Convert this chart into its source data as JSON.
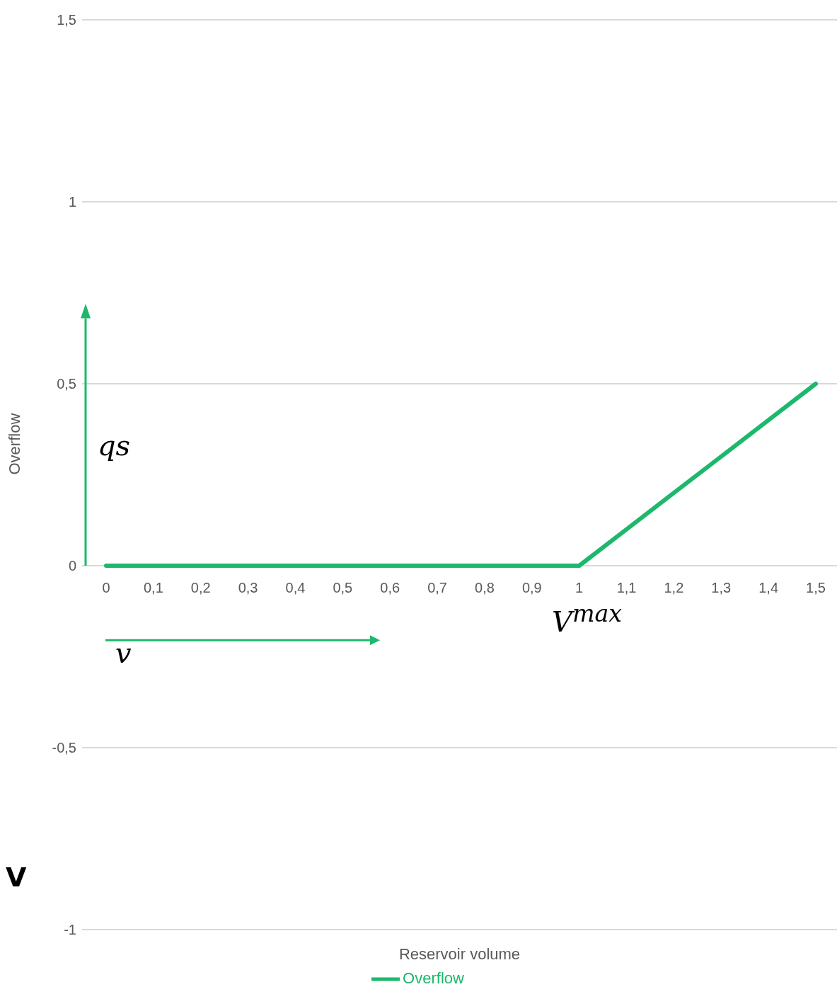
{
  "chart_data": {
    "type": "line",
    "xlabel": "Reservoir volume",
    "ylabel": "Overflow",
    "categories": [
      "0",
      "0,1",
      "0,2",
      "0,3",
      "0,4",
      "0,5",
      "0,6",
      "0,7",
      "0,8",
      "0,9",
      "1",
      "1,1",
      "1,2",
      "1,3",
      "1,4",
      "1,5"
    ],
    "series": [
      {
        "name": "Overflow",
        "color": "#1db86c",
        "values": [
          0,
          0,
          0,
          0,
          0,
          0,
          0,
          0,
          0,
          0,
          0,
          0.1,
          0.2,
          0.3,
          0.4,
          0.5
        ]
      }
    ],
    "ylim": [
      -1,
      1.5
    ],
    "yticks": [
      {
        "value": -1,
        "label": "-1"
      },
      {
        "value": -0.5,
        "label": "-0,5"
      },
      {
        "value": 0,
        "label": "0"
      },
      {
        "value": 0.5,
        "label": "0,5"
      },
      {
        "value": 1,
        "label": "1"
      },
      {
        "value": 1.5,
        "label": "1,5"
      }
    ],
    "grid": "y",
    "legend": "bottom",
    "marker": "none",
    "line_style": "solid",
    "annotations": [
      "qs",
      "V$^{max}$",
      "v",
      "V"
    ]
  }
}
